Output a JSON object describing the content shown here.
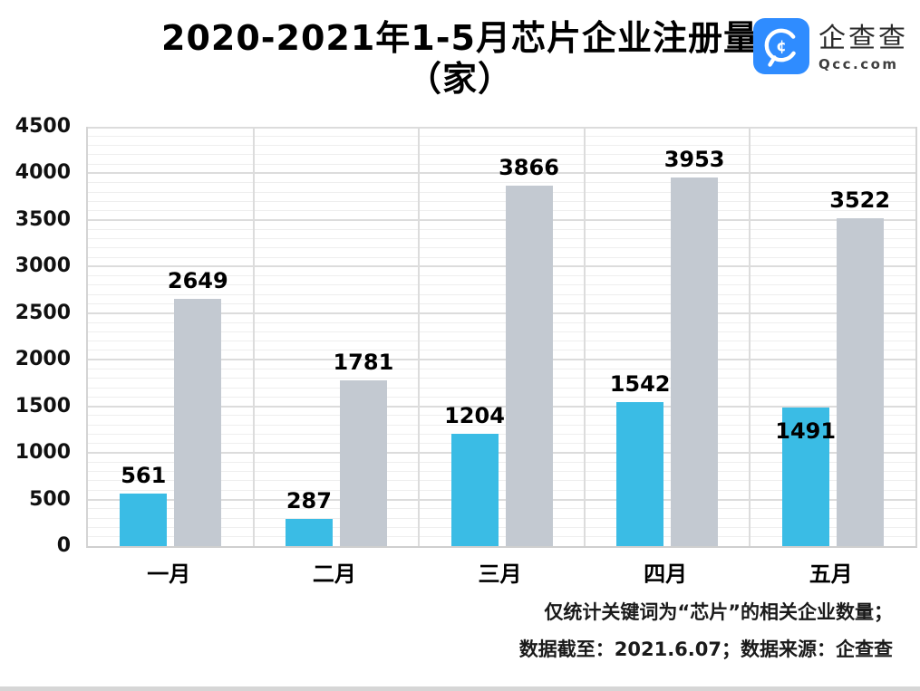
{
  "title": {
    "line1": "2020-2021年1-5月芯片企业注册量",
    "line2": "（家）"
  },
  "logo": {
    "brand": "企查查",
    "domain": "Qcc.com",
    "icon_color": "#2F8CFF"
  },
  "footer": {
    "line1": "仅统计关键词为“芯片”的相关企业数量；",
    "line2": "数据截至：2021.6.07；数据来源：企查查"
  },
  "chart_data": {
    "type": "bar",
    "title": "2020-2021年1-5月芯片企业注册量（家）",
    "xlabel": "",
    "ylabel": "",
    "categories": [
      "一月",
      "二月",
      "三月",
      "四月",
      "五月"
    ],
    "series": [
      {
        "name": "series-cyan",
        "color": "#3ABCE5",
        "values": [
          561,
          287,
          1204,
          1542,
          1491
        ],
        "labels_inside": [
          false,
          false,
          false,
          false,
          true
        ]
      },
      {
        "name": "series-gray",
        "color": "#C3C9D1",
        "values": [
          2649,
          1781,
          3866,
          3953,
          3522
        ],
        "labels_inside": [
          false,
          false,
          false,
          false,
          false
        ]
      }
    ],
    "ylim": [
      0,
      4500
    ],
    "yticks": [
      0,
      500,
      1000,
      1500,
      2000,
      2500,
      3000,
      3500,
      4000,
      4500
    ],
    "minor_grid_step": 100,
    "grid": true,
    "legend_position": "none",
    "data_labels": true
  }
}
